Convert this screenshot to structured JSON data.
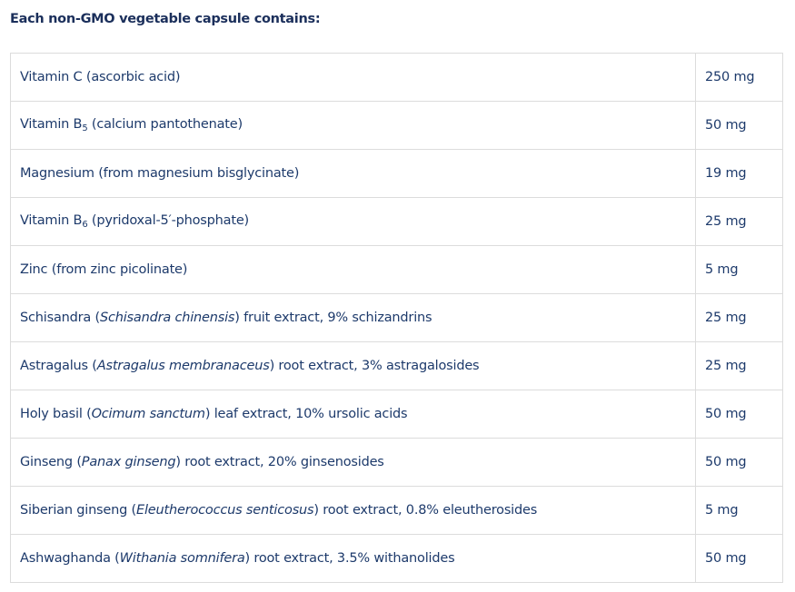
{
  "heading": "Each non-GMO vegetable capsule contains:",
  "rows": [
    {
      "name": [
        {
          "t": "Vitamin C (ascorbic acid)",
          "s": ""
        }
      ],
      "amount": "250 mg"
    },
    {
      "name": [
        {
          "t": "Vitamin B",
          "s": ""
        },
        {
          "t": "5",
          "s": "sub"
        },
        {
          "t": " (calcium pantothenate)",
          "s": ""
        }
      ],
      "amount": "50 mg"
    },
    {
      "name": [
        {
          "t": "Magnesium (from magnesium bisglycinate)",
          "s": ""
        }
      ],
      "amount": "19 mg"
    },
    {
      "name": [
        {
          "t": "Vitamin B",
          "s": ""
        },
        {
          "t": "6",
          "s": "sub"
        },
        {
          "t": " (pyridoxal-5′-phosphate)",
          "s": ""
        }
      ],
      "amount": "25 mg"
    },
    {
      "name": [
        {
          "t": "Zinc (from zinc picolinate)",
          "s": ""
        }
      ],
      "amount": "5 mg"
    },
    {
      "name": [
        {
          "t": "Schisandra (",
          "s": ""
        },
        {
          "t": "Schisandra chinensis",
          "s": "i"
        },
        {
          "t": ") fruit extract, 9% schizandrins",
          "s": ""
        }
      ],
      "amount": "25 mg"
    },
    {
      "name": [
        {
          "t": "Astragalus (",
          "s": ""
        },
        {
          "t": "Astragalus membranaceus",
          "s": "i"
        },
        {
          "t": ") root extract, 3% astragalosides",
          "s": ""
        }
      ],
      "amount": "25 mg"
    },
    {
      "name": [
        {
          "t": "Holy basil (",
          "s": ""
        },
        {
          "t": "Ocimum sanctum",
          "s": "i"
        },
        {
          "t": ") leaf extract, 10% ursolic acids",
          "s": ""
        }
      ],
      "amount": "50 mg"
    },
    {
      "name": [
        {
          "t": "Ginseng (",
          "s": ""
        },
        {
          "t": "Panax ginseng",
          "s": "i"
        },
        {
          "t": ") root extract, 20% ginsenosides",
          "s": ""
        }
      ],
      "amount": "50 mg"
    },
    {
      "name": [
        {
          "t": "Siberian ginseng (",
          "s": ""
        },
        {
          "t": "Eleutherococcus senticosus",
          "s": "i"
        },
        {
          "t": ") root extract, 0.8% eleutherosides",
          "s": ""
        }
      ],
      "amount": "5 mg"
    },
    {
      "name": [
        {
          "t": "Ashwaghanda (",
          "s": ""
        },
        {
          "t": "Withania somnifera",
          "s": "i"
        },
        {
          "t": ") root extract, 3.5% withanolides",
          "s": ""
        }
      ],
      "amount": "50 mg"
    }
  ]
}
